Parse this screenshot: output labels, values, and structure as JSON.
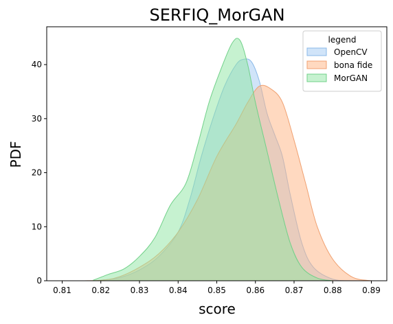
{
  "chart_data": {
    "type": "area",
    "title": "SERFIQ_MorGAN",
    "xlabel": "score",
    "ylabel": "PDF",
    "xlim": [
      0.806,
      0.894
    ],
    "ylim": [
      0,
      47
    ],
    "xticks": [
      0.81,
      0.82,
      0.83,
      0.84,
      0.85,
      0.86,
      0.87,
      0.88,
      0.89
    ],
    "xtick_labels": [
      "0.81",
      "0.82",
      "0.83",
      "0.84",
      "0.85",
      "0.86",
      "0.87",
      "0.88",
      "0.89"
    ],
    "yticks": [
      0,
      10,
      20,
      30,
      40
    ],
    "ytick_labels": [
      "0",
      "10",
      "20",
      "30",
      "40"
    ],
    "grid": false,
    "legend": {
      "title": "legend",
      "placement": "top-right"
    },
    "series": [
      {
        "name": "OpenCV",
        "fill": "#a1c9f4",
        "stroke": "#8ab8e8",
        "x": [
          0.82,
          0.825,
          0.83,
          0.835,
          0.84,
          0.843,
          0.846,
          0.849,
          0.852,
          0.855,
          0.857,
          0.859,
          0.861,
          0.863,
          0.865,
          0.867,
          0.869,
          0.872,
          0.875,
          0.88,
          0.885
        ],
        "y": [
          0.1,
          0.6,
          2,
          4.5,
          9,
          15,
          23,
          30,
          36,
          40,
          41,
          40.5,
          37,
          31,
          27,
          23,
          16,
          7,
          2.5,
          0.3,
          0
        ]
      },
      {
        "name": "bona fide",
        "fill": "#ffb482",
        "stroke": "#f0a070",
        "x": [
          0.81,
          0.82,
          0.825,
          0.83,
          0.835,
          0.84,
          0.845,
          0.85,
          0.855,
          0.858,
          0.861,
          0.864,
          0.867,
          0.87,
          0.873,
          0.876,
          0.88,
          0.885,
          0.89
        ],
        "y": [
          0,
          0.1,
          0.8,
          2.5,
          5,
          9,
          15,
          23,
          29,
          33,
          36,
          35.5,
          33,
          26,
          18,
          10,
          4,
          0.7,
          0
        ]
      },
      {
        "name": "MorGAN",
        "fill": "#8de5a1",
        "stroke": "#70d088",
        "x": [
          0.818,
          0.822,
          0.826,
          0.83,
          0.834,
          0.838,
          0.842,
          0.845,
          0.848,
          0.851,
          0.854,
          0.856,
          0.858,
          0.86,
          0.863,
          0.866,
          0.869,
          0.872,
          0.876,
          0.88
        ],
        "y": [
          0.1,
          1.2,
          2.2,
          4.5,
          8,
          14,
          18,
          25,
          33,
          39,
          44,
          44.5,
          40,
          33,
          24,
          15,
          7,
          2.5,
          0.5,
          0
        ]
      }
    ]
  }
}
